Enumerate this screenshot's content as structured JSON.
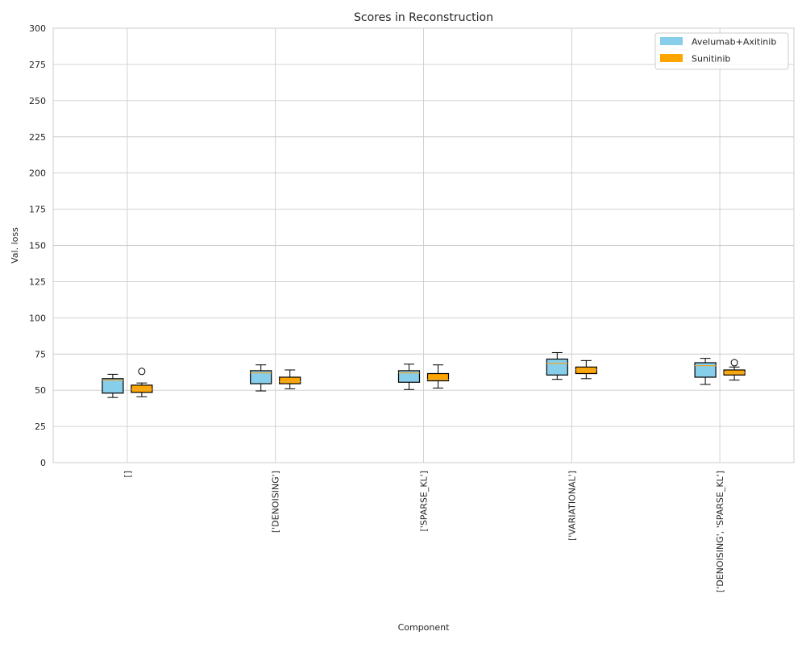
{
  "chart_data": {
    "type": "box",
    "title": "Scores in Reconstruction",
    "xlabel": "Component",
    "ylabel": "Val. loss",
    "ylim": [
      0,
      300
    ],
    "yticks": [
      0,
      25,
      50,
      75,
      100,
      125,
      150,
      175,
      200,
      225,
      250,
      275,
      300
    ],
    "grid": true,
    "legend_position": "top-right",
    "categories": [
      "[]",
      "['DENOISING']",
      "['SPARSE_KL']",
      "['VARIATIONAL']",
      "['DENOISING', 'SPARSE_KL']"
    ],
    "series": [
      {
        "name": "Avelumab+Axitinib",
        "color": "#87ceeb",
        "boxes": [
          {
            "whislo": 45,
            "q1": 48,
            "med": 57,
            "q3": 58,
            "whishi": 61,
            "fliers": []
          },
          {
            "whislo": 49.5,
            "q1": 54.5,
            "med": 62,
            "q3": 63.5,
            "whishi": 67.5,
            "fliers": []
          },
          {
            "whislo": 50.5,
            "q1": 55.5,
            "med": 62,
            "q3": 63.5,
            "whishi": 68,
            "fliers": []
          },
          {
            "whislo": 57.5,
            "q1": 60.5,
            "med": 68.5,
            "q3": 71.5,
            "whishi": 76,
            "fliers": []
          },
          {
            "whislo": 54,
            "q1": 59,
            "med": 67,
            "q3": 69,
            "whishi": 72,
            "fliers": []
          }
        ]
      },
      {
        "name": "Sunitinib",
        "color": "#ffa500",
        "boxes": [
          {
            "whislo": 45.5,
            "q1": 48.5,
            "med": 50.5,
            "q3": 53.5,
            "whishi": 55,
            "fliers": [
              63
            ]
          },
          {
            "whislo": 51,
            "q1": 54.5,
            "med": 56,
            "q3": 59,
            "whishi": 64,
            "fliers": []
          },
          {
            "whislo": 51.5,
            "q1": 56.5,
            "med": 57.5,
            "q3": 61.5,
            "whishi": 67.5,
            "fliers": []
          },
          {
            "whislo": 58,
            "q1": 61.5,
            "med": 64,
            "q3": 66,
            "whishi": 70.5,
            "fliers": []
          },
          {
            "whislo": 57,
            "q1": 60.5,
            "med": 62,
            "q3": 64,
            "whishi": 66,
            "fliers": [
              69
            ]
          }
        ]
      }
    ],
    "median_color": "#e8a93b"
  }
}
